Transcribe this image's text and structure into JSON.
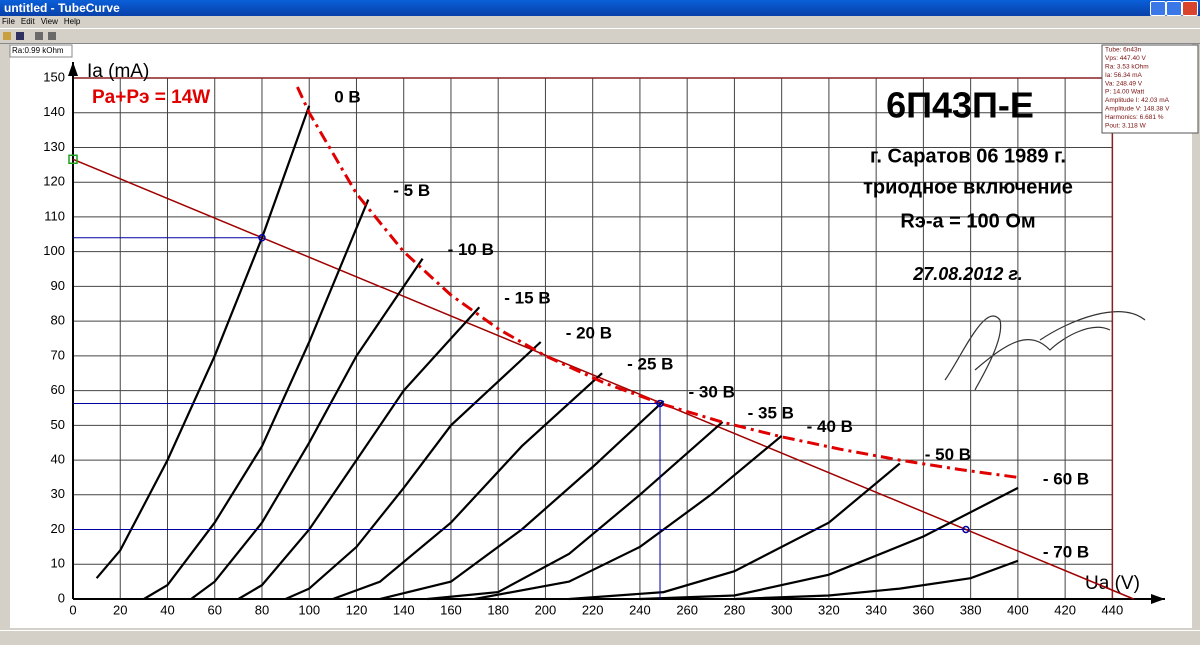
{
  "window": {
    "title": "untitled - TubeCurve",
    "menu": [
      "File",
      "Edit",
      "View",
      "Help"
    ]
  },
  "ra_label": "Ra:0.99 kOhm",
  "info_panel": [
    "Tube: 6n43n",
    "Vps: 447.40 V",
    "Ra: 3.53 kOhm",
    "Ia: 56.34 mA",
    "Va: 248.49 V",
    "P: 14.00 Watt",
    "Amplitude I: 42.03 mA",
    "Amplitude V: 148.38 V",
    "Harmonics: 6.681 %",
    "Pout: 3.118 W"
  ],
  "chart_data": {
    "type": "line",
    "title": "6П43П-Е",
    "annotations": [
      "г. Саратов 06 1989 г.",
      "триодное включение",
      "Rэ-а = 100 Ом",
      "27.08.2012 г."
    ],
    "x_label": "Ua (V)",
    "y_label": "Ia (mA)",
    "xlim": [
      0,
      450
    ],
    "ylim": [
      0,
      150
    ],
    "xticks": [
      0,
      20,
      40,
      60,
      80,
      100,
      120,
      140,
      160,
      180,
      200,
      220,
      240,
      260,
      280,
      300,
      320,
      340,
      360,
      380,
      400,
      420,
      440
    ],
    "yticks": [
      0,
      10,
      20,
      30,
      40,
      50,
      60,
      70,
      80,
      90,
      100,
      110,
      120,
      130,
      140,
      150
    ],
    "grid": true,
    "series": [
      {
        "name": "0 В",
        "color": "#000000",
        "x": [
          10,
          20,
          40,
          60,
          80,
          100
        ],
        "values": [
          6,
          14,
          40,
          70,
          104,
          142
        ]
      },
      {
        "name": "- 5 В",
        "color": "#000000",
        "x": [
          30,
          40,
          60,
          80,
          100,
          125
        ],
        "values": [
          0,
          4,
          22,
          44,
          74,
          115
        ]
      },
      {
        "name": "- 10 В",
        "color": "#000000",
        "x": [
          50,
          60,
          80,
          100,
          120,
          148
        ],
        "values": [
          0,
          5,
          22,
          45,
          70,
          98
        ]
      },
      {
        "name": "- 15 В",
        "color": "#000000",
        "x": [
          70,
          80,
          100,
          120,
          140,
          172
        ],
        "values": [
          0,
          4,
          20,
          40,
          60,
          84
        ]
      },
      {
        "name": "- 20 В",
        "color": "#000000",
        "x": [
          90,
          100,
          120,
          140,
          160,
          198
        ],
        "values": [
          0,
          3,
          15,
          32,
          50,
          74
        ]
      },
      {
        "name": "- 25 В",
        "color": "#000000",
        "x": [
          110,
          130,
          160,
          190,
          224
        ],
        "values": [
          0,
          5,
          22,
          44,
          65
        ]
      },
      {
        "name": "- 30 В",
        "color": "#000000",
        "x": [
          130,
          160,
          190,
          220,
          250
        ],
        "values": [
          0,
          5,
          20,
          38,
          57
        ]
      },
      {
        "name": "- 35 В",
        "color": "#000000",
        "x": [
          150,
          180,
          210,
          240,
          275
        ],
        "values": [
          0,
          2,
          13,
          30,
          51
        ]
      },
      {
        "name": "- 40 В",
        "color": "#000000",
        "x": [
          170,
          210,
          240,
          270,
          300
        ],
        "values": [
          0,
          5,
          15,
          30,
          47
        ]
      },
      {
        "name": "- 50 В",
        "color": "#000000",
        "x": [
          210,
          250,
          280,
          320,
          350
        ],
        "values": [
          0,
          2,
          8,
          22,
          39
        ]
      },
      {
        "name": "- 60 В",
        "color": "#000000",
        "x": [
          240,
          280,
          320,
          360,
          400
        ],
        "values": [
          0,
          1,
          7,
          18,
          32
        ]
      },
      {
        "name": "- 70 В",
        "color": "#000000",
        "x": [
          280,
          320,
          350,
          380,
          400
        ],
        "values": [
          0,
          1,
          3,
          6,
          11
        ]
      }
    ],
    "load_line": {
      "color": "#a00000",
      "x": [
        0,
        449
      ],
      "values": [
        126.6,
        0
      ]
    },
    "power_curve": {
      "name": "Pa+Pэ = 14W",
      "color": "#e00000",
      "x": [
        95,
        100,
        120,
        140,
        160,
        180,
        200,
        225,
        250,
        275,
        300,
        325,
        350,
        375,
        400
      ],
      "values": [
        147.4,
        140,
        116.7,
        100,
        87.5,
        77.8,
        70,
        62.2,
        56,
        50.9,
        46.7,
        43.1,
        40,
        37.3,
        35
      ]
    },
    "markers": {
      "color": "#0000a0",
      "x": [
        80,
        248.5,
        378
      ],
      "values": [
        104,
        56.3,
        20
      ]
    }
  }
}
